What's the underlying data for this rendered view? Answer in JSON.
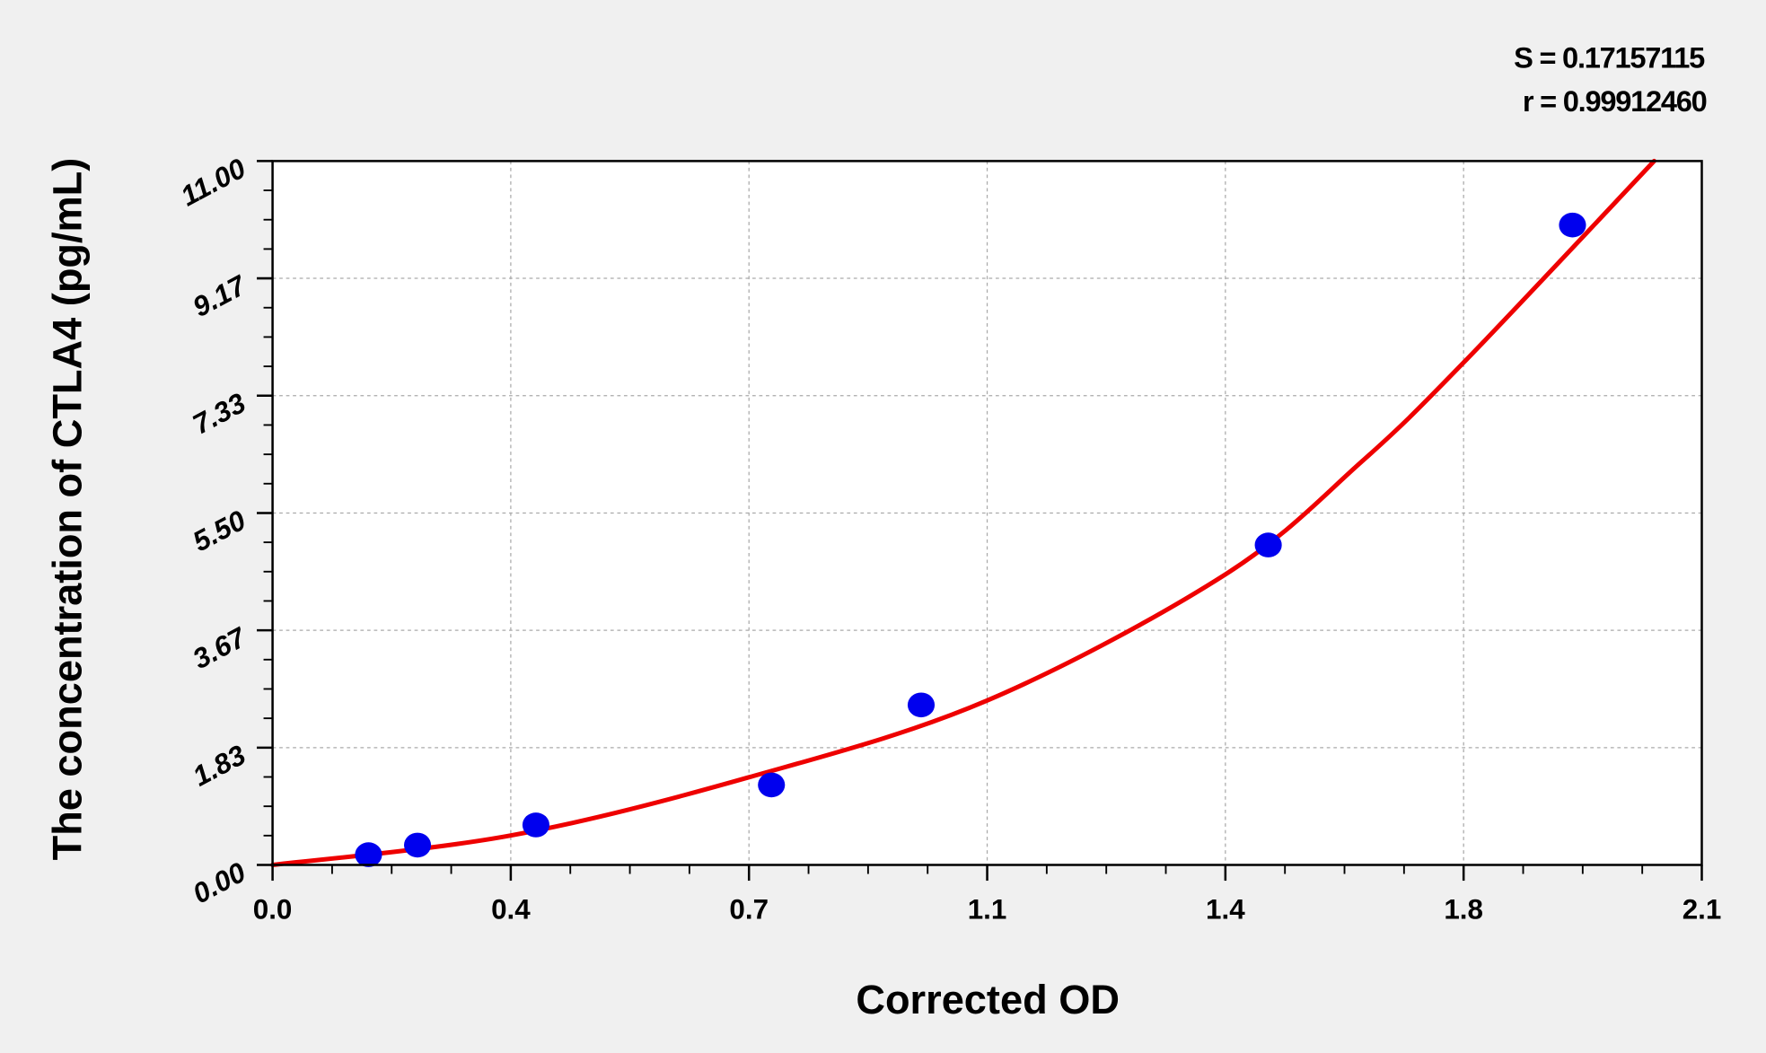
{
  "chart_data": {
    "type": "scatter",
    "title": "",
    "xlabel": "Corrected OD",
    "ylabel": "The concentration of CTLA4 (pg/mL)",
    "xlim": [
      0,
      2.1
    ],
    "ylim": [
      0,
      11
    ],
    "x_ticks": [
      0,
      0.35,
      0.7,
      1.05,
      1.4,
      1.75,
      2.1
    ],
    "x_tick_labels": [
      "0.0",
      "0.4",
      "0.7",
      "1.1",
      "1.4",
      "1.8",
      "2.1"
    ],
    "y_ticks": [
      0,
      1.833,
      3.667,
      5.5,
      7.333,
      9.167,
      11
    ],
    "y_tick_labels": [
      "0.00",
      "1.83",
      "3.67",
      "5.50",
      "7.33",
      "9.17",
      "11.00"
    ],
    "grid": true,
    "series": [
      {
        "kind": "points",
        "color": "#0000ee",
        "x": [
          0.141,
          0.213,
          0.387,
          0.733,
          0.953,
          1.463,
          1.91
        ],
        "y": [
          0.16,
          0.31,
          0.625,
          1.25,
          2.5,
          5.0,
          10.0
        ]
      },
      {
        "kind": "fitted-curve",
        "color": "#ee0000",
        "x": [
          0.0,
          0.35,
          0.7,
          1.05,
          1.4,
          1.6,
          1.75,
          2.03
        ],
        "y": [
          0.0,
          0.46,
          1.37,
          2.57,
          4.54,
          6.3,
          7.85,
          11.0
        ]
      }
    ],
    "annotations": [
      "S = 0.17157115",
      "r = 0.99912460"
    ]
  }
}
